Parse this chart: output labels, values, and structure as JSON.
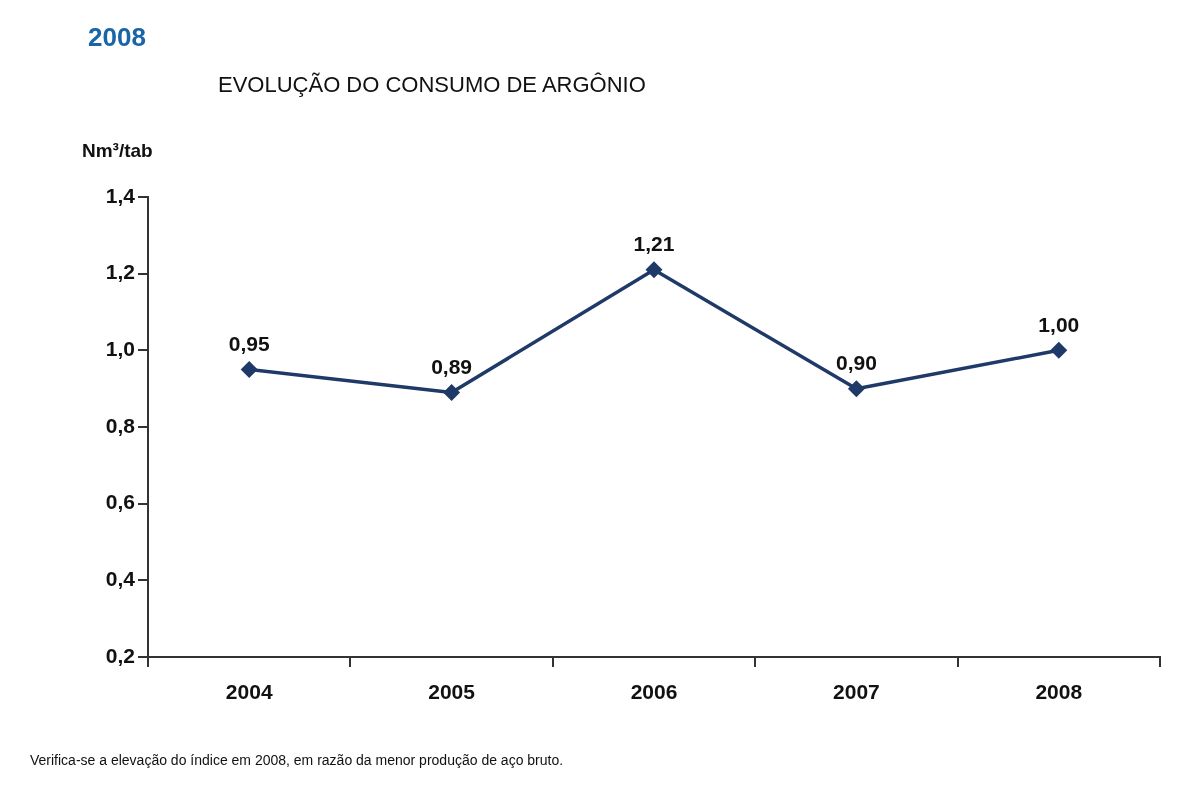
{
  "chart_data": {
    "type": "line",
    "subtitle": "2008",
    "title": "EVOLUÇÃO DO CONSUMO DE ARGÔNIO",
    "ylabel": "Nm³/tab",
    "categories": [
      "2004",
      "2005",
      "2006",
      "2007",
      "2008"
    ],
    "series": [
      {
        "color": "#1f3a68",
        "values": [
          0.95,
          0.89,
          1.21,
          0.9,
          1.0
        ],
        "value_labels": [
          "0,95",
          "0,89",
          "1,21",
          "0,90",
          "1,00"
        ]
      }
    ],
    "ylim": [
      0.2,
      1.4
    ],
    "yticks": [
      {
        "value": 0.2,
        "label": "0,2"
      },
      {
        "value": 0.4,
        "label": "0,4"
      },
      {
        "value": 0.6,
        "label": "0,6"
      },
      {
        "value": 0.8,
        "label": "0,8"
      },
      {
        "value": 1.0,
        "label": "1,0"
      },
      {
        "value": 1.2,
        "label": "1,2"
      },
      {
        "value": 1.4,
        "label": "1,4"
      }
    ],
    "grid": false,
    "legend": false,
    "marker": "diamond",
    "line_style": "solid",
    "annotations": [
      "Verifica-se a elevação do índice em 2008, em razão da menor produção de aço bruto."
    ]
  }
}
